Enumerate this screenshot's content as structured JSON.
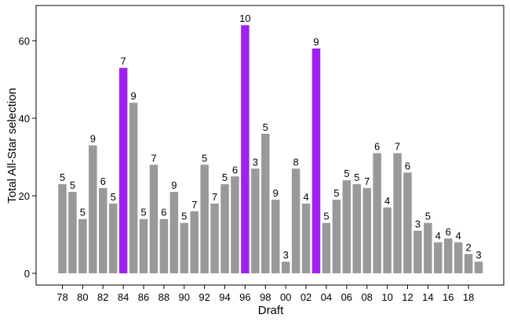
{
  "chart_data": {
    "type": "bar",
    "xlabel": "Draft",
    "ylabel": "Total All-Star selection",
    "ylim": [
      0,
      67
    ],
    "y_ticks": [
      0,
      20,
      40,
      60
    ],
    "x_tick_labels": [
      "78",
      "80",
      "82",
      "84",
      "86",
      "88",
      "90",
      "92",
      "94",
      "96",
      "98",
      "00",
      "02",
      "04",
      "06",
      "08",
      "10",
      "12",
      "14",
      "16",
      "18"
    ],
    "grid": false,
    "colors": {
      "default": "#999999",
      "highlight": "#a020f0"
    },
    "categories": [
      "78",
      "79",
      "80",
      "81",
      "82",
      "83",
      "84",
      "85",
      "86",
      "87",
      "88",
      "89",
      "90",
      "91",
      "92",
      "93",
      "94",
      "95",
      "96",
      "97",
      "98",
      "99",
      "00",
      "01",
      "02",
      "03",
      "04",
      "05",
      "06",
      "07",
      "08",
      "09",
      "10",
      "11",
      "12",
      "13",
      "14",
      "15",
      "16",
      "17",
      "18",
      "19"
    ],
    "values": [
      23,
      21,
      14,
      33,
      22,
      18,
      53,
      44,
      14,
      28,
      14,
      21,
      13,
      16,
      28,
      18,
      23,
      25,
      64,
      27,
      36,
      19,
      3,
      27,
      18,
      58,
      13,
      19,
      24,
      23,
      22,
      31,
      17,
      31,
      26,
      11,
      13,
      8,
      9,
      8,
      5,
      3
    ],
    "labels": [
      5,
      5,
      5,
      9,
      6,
      5,
      7,
      9,
      5,
      7,
      6,
      9,
      5,
      7,
      5,
      7,
      5,
      6,
      10,
      3,
      5,
      9,
      3,
      8,
      4,
      9,
      5,
      5,
      5,
      5,
      7,
      6,
      4,
      7,
      6,
      3,
      5,
      4,
      6,
      4,
      2,
      3
    ],
    "highlighted": [
      "84",
      "96",
      "03"
    ]
  }
}
